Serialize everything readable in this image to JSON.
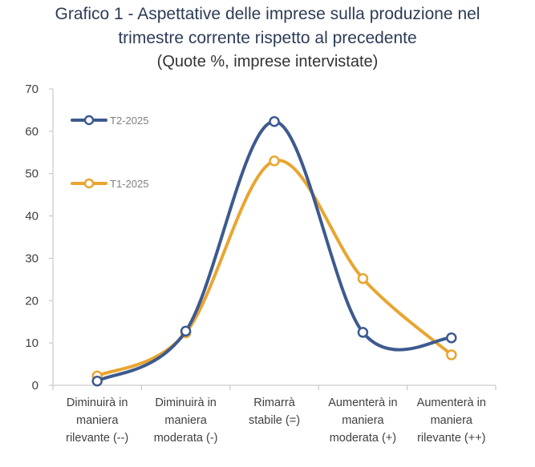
{
  "chart_data": {
    "type": "line",
    "title_lines": [
      "Grafico 1 - Aspettative delle imprese sulla produzione nel",
      "trimestre corrente rispetto al precedente"
    ],
    "subtitle": "(Quote %, imprese intervistate)",
    "categories": [
      [
        "Diminuirà in",
        "maniera",
        "rilevante (--)"
      ],
      [
        "Diminuirà in",
        "maniera",
        "moderata (-)"
      ],
      [
        "Rimarrà",
        "stabile (=)"
      ],
      [
        "Aumenterà in",
        "maniera",
        "moderata (+)"
      ],
      [
        "Aumenterà in",
        "maniera",
        "rilevante (++)"
      ]
    ],
    "series": [
      {
        "name": "T2-2025",
        "color": "#3d5a8f",
        "values": [
          1.0,
          12.8,
          62.3,
          12.5,
          11.2
        ]
      },
      {
        "name": "T1-2025",
        "color": "#e8a531",
        "values": [
          2.2,
          12.4,
          53.0,
          25.2,
          7.2
        ]
      }
    ],
    "ylim": [
      0,
      70
    ],
    "yticks": [
      0,
      10,
      20,
      30,
      40,
      50,
      60,
      70
    ],
    "smooth": true,
    "legend_position": "top-left",
    "grid": false
  }
}
